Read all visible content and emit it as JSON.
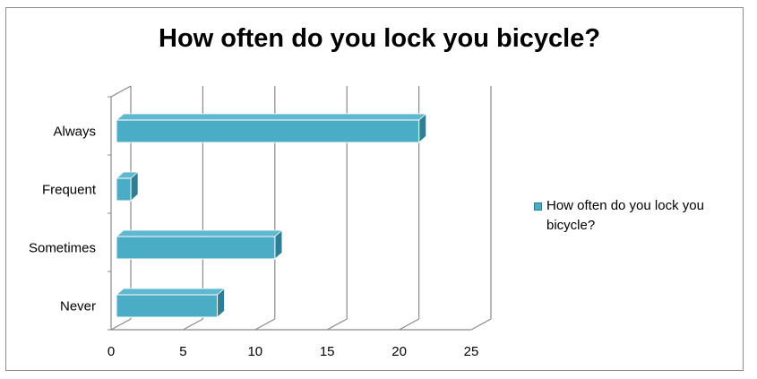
{
  "chart_data": {
    "type": "bar",
    "orientation": "horizontal",
    "style": "3d-clustered",
    "title": "How often do you lock you bicycle?",
    "categories": [
      "Always",
      "Frequent",
      "Sometimes",
      "Never"
    ],
    "series": [
      {
        "name": "How often do you lock you bicycle?",
        "values": [
          21,
          1,
          11,
          7
        ]
      }
    ],
    "xlim": [
      0,
      25
    ],
    "xticks": [
      0,
      5,
      10,
      15,
      20,
      25
    ],
    "xtick_labels": [
      "0",
      "5",
      "10",
      "15",
      "20",
      "25"
    ],
    "grid": true,
    "legend_position": "right",
    "colors": {
      "bar_front": "#4bacc6",
      "bar_top": "#5fb8cf",
      "bar_side": "#2f7e93",
      "grid": "#8a8a8a"
    }
  }
}
